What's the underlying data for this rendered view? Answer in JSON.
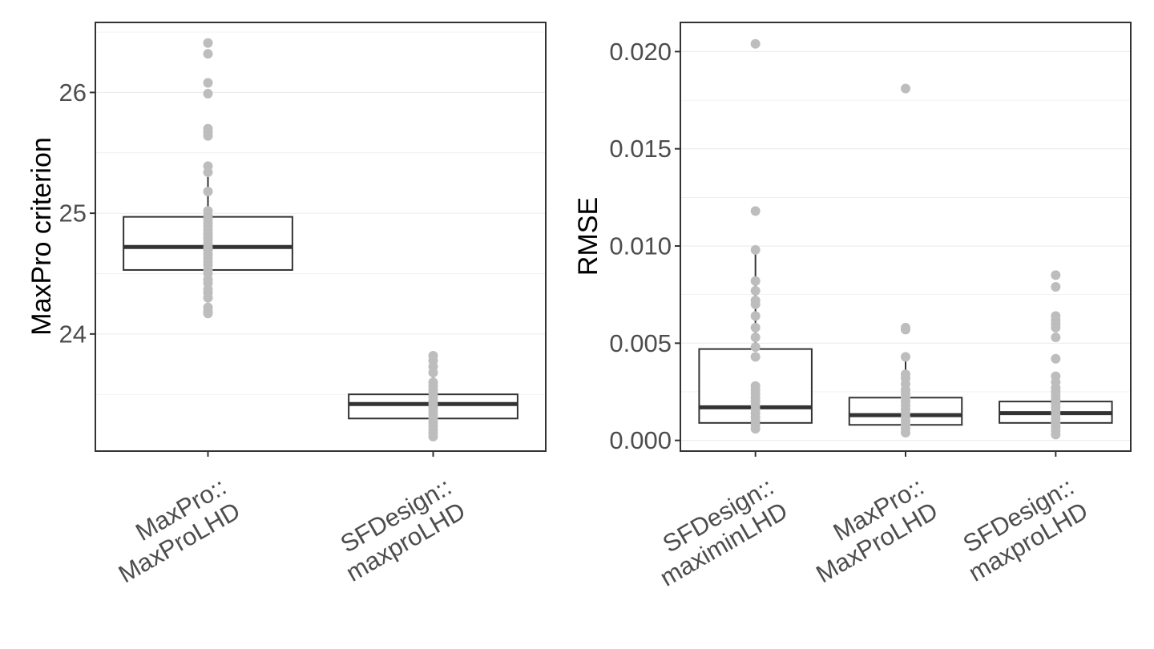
{
  "chart_data": [
    {
      "type": "box",
      "ylabel": "MaxPro criterion",
      "xlabel": "",
      "ylim": [
        23.03,
        26.58
      ],
      "y_ticks": [
        24,
        25,
        26
      ],
      "y_tick_labels": [
        "24",
        "25",
        "26"
      ],
      "grid": true,
      "categories": [
        {
          "lines": [
            "MaxPro::",
            "MaxProLHD"
          ]
        },
        {
          "lines": [
            "SFDesign::",
            "maxproLHD"
          ]
        }
      ],
      "boxes": [
        {
          "q1": 24.53,
          "median": 24.72,
          "q3": 24.97,
          "whisker_low": 24.28,
          "whisker_high": 25.3,
          "points": [
            24.17,
            24.19,
            24.22,
            24.3,
            24.34,
            24.37,
            24.42,
            24.45,
            24.5,
            24.53,
            24.57,
            24.6,
            24.63,
            24.66,
            24.69,
            24.7,
            24.72,
            24.75,
            24.78,
            24.8,
            24.83,
            24.86,
            24.89,
            24.92,
            24.95,
            24.98,
            25.02,
            25.18,
            25.34,
            25.39,
            25.64,
            25.67,
            25.7,
            25.99,
            26.08,
            26.32,
            26.41
          ]
        },
        {
          "q1": 23.3,
          "median": 23.42,
          "q3": 23.5,
          "whisker_low": 23.15,
          "whisker_high": 23.82,
          "points": [
            23.15,
            23.18,
            23.21,
            23.24,
            23.27,
            23.3,
            23.33,
            23.36,
            23.39,
            23.42,
            23.45,
            23.48,
            23.51,
            23.54,
            23.57,
            23.6,
            23.68,
            23.73,
            23.78,
            23.82
          ]
        }
      ]
    },
    {
      "type": "box",
      "ylabel": "RMSE",
      "xlabel": "",
      "ylim": [
        -0.00055,
        0.0215
      ],
      "y_ticks": [
        0.0,
        0.005,
        0.01,
        0.015,
        0.02
      ],
      "y_tick_labels": [
        "0.000",
        "0.005",
        "0.010",
        "0.015",
        "0.020"
      ],
      "grid": true,
      "categories": [
        {
          "lines": [
            "SFDesign::",
            "maximinLHD"
          ]
        },
        {
          "lines": [
            "MaxPro::",
            "MaxProLHD"
          ]
        },
        {
          "lines": [
            "SFDesign::",
            "maxproLHD"
          ]
        }
      ],
      "boxes": [
        {
          "q1": 0.0009,
          "median": 0.0017,
          "q3": 0.0047,
          "whisker_low": 0.0006,
          "whisker_high": 0.0098,
          "points": [
            0.0006,
            0.0008,
            0.001,
            0.0012,
            0.0014,
            0.0016,
            0.0018,
            0.002,
            0.0022,
            0.0024,
            0.0026,
            0.0028,
            0.0043,
            0.0048,
            0.0053,
            0.0058,
            0.0064,
            0.007,
            0.0072,
            0.0077,
            0.0082,
            0.0098,
            0.0118,
            0.0204
          ]
        },
        {
          "q1": 0.0008,
          "median": 0.0013,
          "q3": 0.0022,
          "whisker_low": 0.0004,
          "whisker_high": 0.0043,
          "points": [
            0.0004,
            0.0006,
            0.0008,
            0.001,
            0.0012,
            0.0014,
            0.0016,
            0.0018,
            0.002,
            0.0022,
            0.0024,
            0.0026,
            0.0029,
            0.0032,
            0.0034,
            0.0043,
            0.0057,
            0.0058,
            0.0181
          ]
        },
        {
          "q1": 0.0009,
          "median": 0.0014,
          "q3": 0.002,
          "whisker_low": 0.0003,
          "whisker_high": 0.0033,
          "points": [
            0.0003,
            0.0005,
            0.0007,
            0.0009,
            0.0011,
            0.0013,
            0.0015,
            0.0017,
            0.0019,
            0.0021,
            0.0023,
            0.0025,
            0.0027,
            0.003,
            0.0033,
            0.0042,
            0.0053,
            0.0058,
            0.006,
            0.0062,
            0.0064,
            0.0079,
            0.0085
          ]
        }
      ]
    }
  ],
  "colors": {
    "box_stroke": "#333333",
    "point": "#bdbdbd",
    "grid": "#ebebeb",
    "panel_border": "#333333",
    "tick_text": "#4d4d4d",
    "title_text": "#000000"
  }
}
